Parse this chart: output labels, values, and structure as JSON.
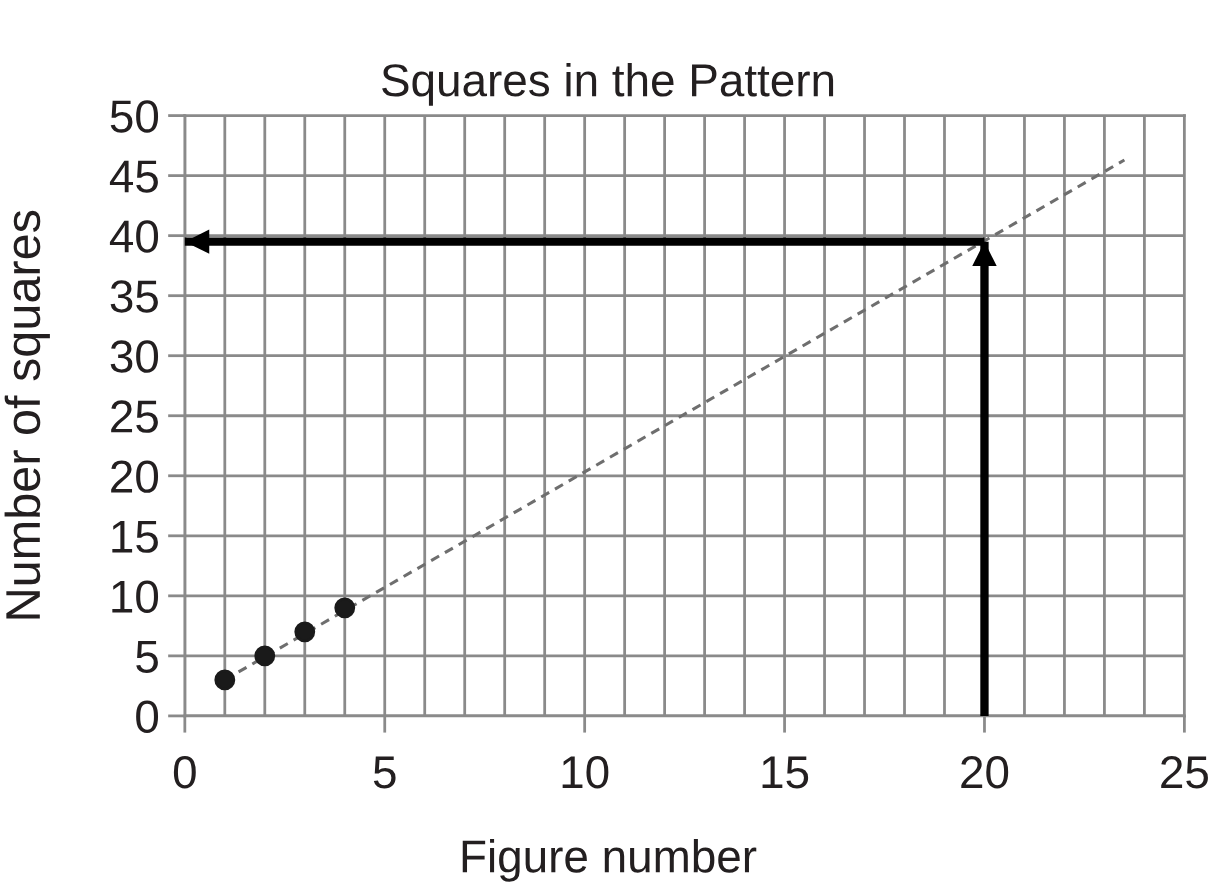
{
  "chart_data": {
    "type": "scatter",
    "title": "Squares in the Pattern",
    "xlabel": "Figure number",
    "ylabel": "Number of squares",
    "series": [
      {
        "color": "#1a1a1a",
        "marker": "circle",
        "x": [
          1,
          2,
          3,
          4
        ],
        "values": [
          3,
          5,
          7,
          9
        ]
      },
      {
        "type": "line",
        "color": "#6e6e6e",
        "line_style": "dashed",
        "x": [
          1,
          23.5
        ],
        "values": [
          3,
          46.3
        ]
      },
      {
        "type": "line",
        "color": "#000000",
        "line_style": "solid",
        "x": [
          20,
          20
        ],
        "values": [
          0,
          39.5
        ]
      },
      {
        "type": "line",
        "color": "#000000",
        "line_style": "solid",
        "x": [
          20,
          0
        ],
        "values": [
          39.5,
          39.5
        ]
      }
    ],
    "xlim": [
      0,
      25
    ],
    "ylim": [
      0,
      50
    ],
    "xticks": [
      0,
      {
        "value": 1,
        "label": null
      },
      {
        "value": 2,
        "label": null
      },
      {
        "value": 3,
        "label": null
      },
      {
        "value": 4,
        "label": null
      },
      5,
      {
        "value": 6,
        "label": null
      },
      {
        "value": 7,
        "label": null
      },
      {
        "value": 8,
        "label": null
      },
      {
        "value": 9,
        "label": null
      },
      10,
      {
        "value": 11,
        "label": null
      },
      {
        "value": 12,
        "label": null
      },
      {
        "value": 13,
        "label": null
      },
      {
        "value": 14,
        "label": null
      },
      15,
      {
        "value": 16,
        "label": null
      },
      {
        "value": 17,
        "label": null
      },
      {
        "value": 18,
        "label": null
      },
      {
        "value": 19,
        "label": null
      },
      20,
      {
        "value": 21,
        "label": null
      },
      {
        "value": 22,
        "label": null
      },
      {
        "value": 23,
        "label": null
      },
      {
        "value": 24,
        "label": null
      },
      25
    ],
    "yticks": [
      0,
      5,
      10,
      15,
      20,
      25,
      30,
      35,
      40,
      45,
      50
    ],
    "grid": true
  }
}
